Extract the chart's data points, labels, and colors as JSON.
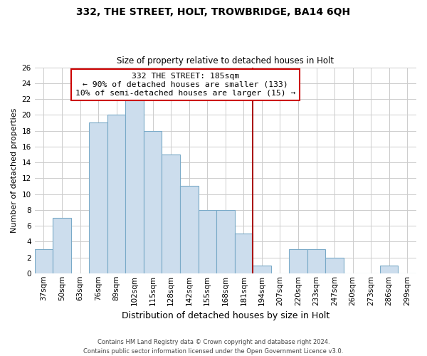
{
  "title": "332, THE STREET, HOLT, TROWBRIDGE, BA14 6QH",
  "subtitle": "Size of property relative to detached houses in Holt",
  "xlabel": "Distribution of detached houses by size in Holt",
  "ylabel": "Number of detached properties",
  "footer1": "Contains HM Land Registry data © Crown copyright and database right 2024.",
  "footer2": "Contains public sector information licensed under the Open Government Licence v3.0.",
  "bar_labels": [
    "37sqm",
    "50sqm",
    "63sqm",
    "76sqm",
    "89sqm",
    "102sqm",
    "115sqm",
    "128sqm",
    "142sqm",
    "155sqm",
    "168sqm",
    "181sqm",
    "194sqm",
    "207sqm",
    "220sqm",
    "233sqm",
    "247sqm",
    "260sqm",
    "273sqm",
    "286sqm",
    "299sqm"
  ],
  "bar_values": [
    3,
    7,
    0,
    19,
    20,
    22,
    18,
    15,
    11,
    8,
    8,
    5,
    1,
    0,
    3,
    3,
    2,
    0,
    0,
    1,
    0
  ],
  "bar_color": "#ccdded",
  "bar_edge_color": "#7aaac8",
  "ref_line_x": 11.5,
  "ref_line_color": "#aa0000",
  "annotation_title": "332 THE STREET: 185sqm",
  "annotation_line1": "← 90% of detached houses are smaller (133)",
  "annotation_line2": "10% of semi-detached houses are larger (15) →",
  "annotation_box_color": "#ffffff",
  "annotation_box_edge": "#cc0000",
  "ylim": [
    0,
    26
  ],
  "yticks": [
    0,
    2,
    4,
    6,
    8,
    10,
    12,
    14,
    16,
    18,
    20,
    22,
    24,
    26
  ],
  "background_color": "#ffffff",
  "grid_color": "#cccccc",
  "title_fontsize": 10,
  "subtitle_fontsize": 8.5,
  "ylabel_fontsize": 8,
  "xlabel_fontsize": 9,
  "tick_fontsize": 7.5,
  "footer_fontsize": 6.0
}
